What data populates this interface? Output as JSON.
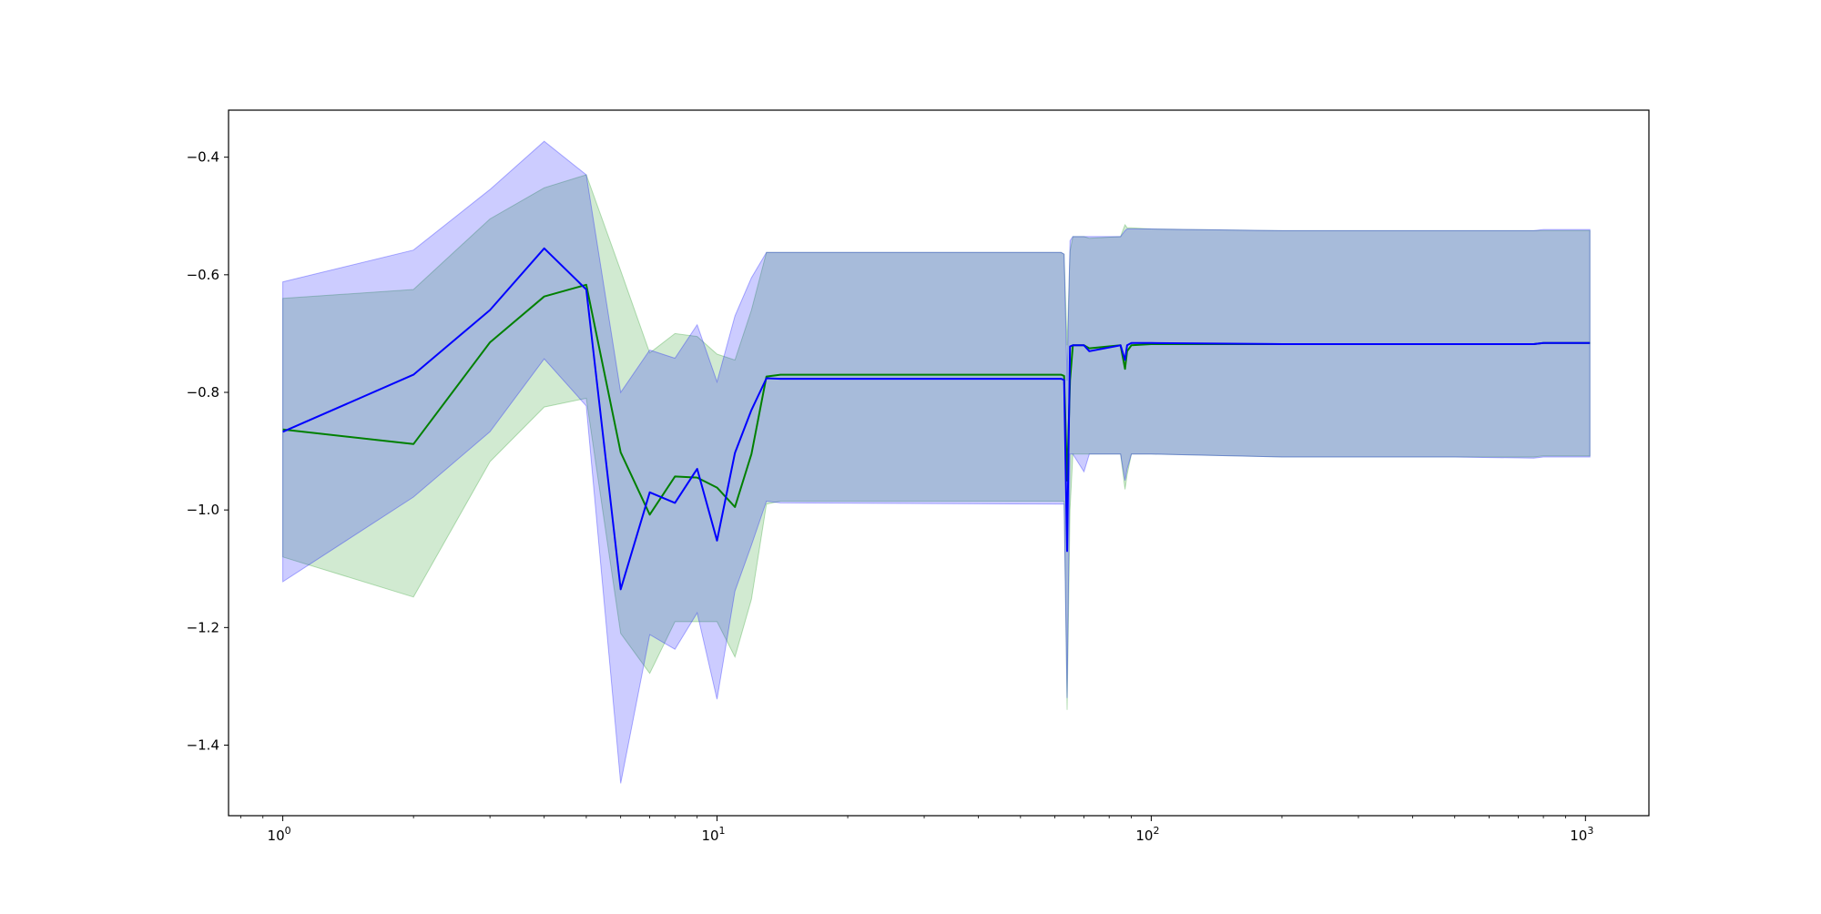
{
  "chart_data": {
    "type": "line",
    "title": "",
    "xlabel": "",
    "ylabel": "",
    "xscale": "log",
    "xlim": [
      0.75,
      1400
    ],
    "ylim": [
      -1.52,
      -0.32
    ],
    "grid": false,
    "legend": "none",
    "x_ticks": [
      {
        "value": 1,
        "base": "10",
        "exp": "0"
      },
      {
        "value": 10,
        "base": "10",
        "exp": "1"
      },
      {
        "value": 100,
        "base": "10",
        "exp": "2"
      },
      {
        "value": 1000,
        "base": "10",
        "exp": "3"
      }
    ],
    "y_ticks": [
      {
        "value": -0.4,
        "label": "−0.4"
      },
      {
        "value": -0.6,
        "label": "−0.6"
      },
      {
        "value": -0.8,
        "label": "−0.8"
      },
      {
        "value": -1.0,
        "label": "−1.0"
      },
      {
        "value": -1.2,
        "label": "−1.2"
      },
      {
        "value": -1.4,
        "label": "−1.4"
      }
    ],
    "series": [
      {
        "color": "#008000",
        "band_color": "#2ca02c",
        "band_opacity": 0.22,
        "x": [
          1,
          2,
          3,
          4,
          5,
          6,
          7,
          8,
          9,
          10,
          11,
          12,
          13,
          14,
          62,
          63,
          64,
          65,
          66,
          70,
          72,
          85,
          87,
          88,
          90,
          100,
          200,
          500,
          760,
          800,
          1024
        ],
        "mean": [
          -0.863,
          -0.888,
          -0.715,
          -0.637,
          -0.617,
          -0.902,
          -1.008,
          -0.943,
          -0.945,
          -0.962,
          -0.995,
          -0.905,
          -0.773,
          -0.77,
          -0.77,
          -0.772,
          -0.95,
          -0.78,
          -0.72,
          -0.72,
          -0.725,
          -0.72,
          -0.76,
          -0.73,
          -0.72,
          -0.718,
          -0.718,
          -0.718,
          -0.718,
          -0.716,
          -0.716
        ],
        "upper": [
          -0.64,
          -0.625,
          -0.505,
          -0.452,
          -0.43,
          -0.593,
          -0.733,
          -0.7,
          -0.705,
          -0.735,
          -0.745,
          -0.66,
          -0.562,
          -0.562,
          -0.562,
          -0.565,
          -0.72,
          -0.56,
          -0.535,
          -0.535,
          -0.538,
          -0.535,
          -0.515,
          -0.52,
          -0.52,
          -0.522,
          -0.525,
          -0.525,
          -0.525,
          -0.525,
          -0.525
        ],
        "lower": [
          -1.08,
          -1.148,
          -0.918,
          -0.825,
          -0.81,
          -1.21,
          -1.278,
          -1.19,
          -1.19,
          -1.19,
          -1.25,
          -1.152,
          -0.99,
          -0.985,
          -0.985,
          -0.985,
          -1.34,
          -1.0,
          -0.905,
          -0.905,
          -0.905,
          -0.905,
          -0.965,
          -0.94,
          -0.905,
          -0.905,
          -0.91,
          -0.91,
          -0.91,
          -0.908,
          -0.908
        ]
      },
      {
        "color": "#0000ff",
        "band_color": "#0000ff",
        "band_opacity": 0.2,
        "x": [
          1,
          2,
          3,
          4,
          5,
          6,
          7,
          8,
          9,
          10,
          11,
          12,
          13,
          14,
          62,
          63,
          64,
          65,
          66,
          70,
          72,
          85,
          87,
          88,
          90,
          100,
          200,
          500,
          760,
          800,
          1024
        ],
        "mean": [
          -0.867,
          -0.77,
          -0.66,
          -0.555,
          -0.625,
          -1.135,
          -0.97,
          -0.988,
          -0.93,
          -1.052,
          -0.903,
          -0.83,
          -0.776,
          -0.777,
          -0.777,
          -0.779,
          -1.07,
          -0.722,
          -0.72,
          -0.72,
          -0.73,
          -0.72,
          -0.745,
          -0.72,
          -0.716,
          -0.716,
          -0.718,
          -0.718,
          -0.718,
          -0.716,
          -0.716
        ],
        "upper": [
          -0.612,
          -0.558,
          -0.455,
          -0.373,
          -0.43,
          -0.8,
          -0.728,
          -0.742,
          -0.685,
          -0.782,
          -0.67,
          -0.605,
          -0.562,
          -0.562,
          -0.562,
          -0.565,
          -0.78,
          -0.542,
          -0.535,
          -0.535,
          -0.535,
          -0.535,
          -0.525,
          -0.522,
          -0.522,
          -0.522,
          -0.525,
          -0.525,
          -0.525,
          -0.523,
          -0.523
        ],
        "lower": [
          -1.122,
          -0.978,
          -0.867,
          -0.743,
          -0.823,
          -1.465,
          -1.212,
          -1.237,
          -1.175,
          -1.322,
          -1.138,
          -1.06,
          -0.985,
          -0.988,
          -0.99,
          -0.99,
          -1.32,
          -0.905,
          -0.905,
          -0.935,
          -0.905,
          -0.905,
          -0.95,
          -0.93,
          -0.905,
          -0.905,
          -0.91,
          -0.91,
          -0.912,
          -0.91,
          -0.91
        ]
      }
    ]
  }
}
